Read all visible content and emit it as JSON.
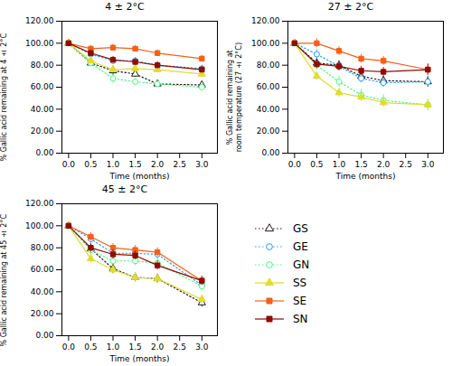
{
  "chart_data": [
    {
      "type": "line",
      "title": "4 ± 2°C",
      "xlabel": "Time (months)",
      "ylabel": "% Gallic acid remaining at 4 ± 2°C",
      "x": [
        0.0,
        0.5,
        1.0,
        1.5,
        2.0,
        3.0
      ],
      "xlim": [
        -0.15,
        3.35
      ],
      "xticks": [
        {
          "value": 0.0,
          "label": "0.0"
        },
        0.5,
        {
          "value": 1.0,
          "label": "1.0"
        },
        1.5,
        {
          "value": 2.0,
          "label": "2.0"
        },
        2.5,
        {
          "value": 3.0,
          "label": "3.0"
        }
      ],
      "ylim": [
        0,
        120
      ],
      "yticks": [
        {
          "value": 0,
          "label": "0.00"
        },
        {
          "value": 20,
          "label": "20.00"
        },
        {
          "value": 40,
          "label": "40.00"
        },
        {
          "value": 60,
          "label": "60.00"
        },
        {
          "value": 80,
          "label": "80.00"
        },
        {
          "value": 100,
          "label": "100.00"
        },
        {
          "value": 120,
          "label": "120.00"
        }
      ],
      "grid": false,
      "series": [
        {
          "name": "GS",
          "marker": "triangle-open",
          "line_style": "dotted",
          "values": [
            100,
            82,
            75,
            72,
            63,
            62
          ],
          "err": [
            0,
            3,
            4,
            3,
            3,
            3
          ]
        },
        {
          "name": "GE",
          "marker": "circle-open",
          "line_style": "dotted",
          "values": [
            100,
            90,
            84,
            84,
            80,
            77
          ],
          "err": [
            0,
            3,
            3,
            3,
            3,
            3
          ]
        },
        {
          "name": "GN",
          "marker": "circle-open",
          "line_style": "dotted",
          "values": [
            100,
            82,
            68,
            65,
            63,
            60
          ],
          "err": [
            0,
            3,
            4,
            3,
            3,
            3
          ]
        },
        {
          "name": "SS",
          "marker": "triangle",
          "line_style": "solid",
          "values": [
            100,
            84,
            76,
            77,
            76,
            72
          ],
          "err": [
            0,
            3,
            3,
            3,
            3,
            3
          ]
        },
        {
          "name": "SE",
          "marker": "square",
          "line_style": "solid",
          "values": [
            100,
            95,
            96,
            95,
            91,
            86
          ],
          "err": [
            0,
            3,
            3,
            3,
            3,
            3
          ]
        },
        {
          "name": "SN",
          "marker": "square",
          "line_style": "solid",
          "values": [
            100,
            91,
            85,
            83,
            80,
            76
          ],
          "err": [
            0,
            3,
            3,
            3,
            3,
            3
          ]
        }
      ]
    },
    {
      "type": "line",
      "title": "27 ± 2°C",
      "xlabel": "Time (months)",
      "ylabel": "% Gallic acid remaining at\nroom temperature (27 ± 2°C)",
      "x": [
        0.0,
        0.5,
        1.0,
        1.5,
        2.0,
        3.0
      ],
      "xlim": [
        -0.15,
        3.35
      ],
      "xticks": [
        {
          "value": 0.0,
          "label": "0.0"
        },
        0.5,
        {
          "value": 1.0,
          "label": "1.0"
        },
        1.5,
        {
          "value": 2.0,
          "label": "2.0"
        },
        2.5,
        {
          "value": 3.0,
          "label": "3.0"
        }
      ],
      "ylim": [
        0,
        120
      ],
      "yticks": [
        {
          "value": 0,
          "label": "0.00"
        },
        {
          "value": 20,
          "label": "20.00"
        },
        {
          "value": 40,
          "label": "40.00"
        },
        {
          "value": 60,
          "label": "60.00"
        },
        {
          "value": 80,
          "label": "80.00"
        },
        {
          "value": 100,
          "label": "100.00"
        },
        {
          "value": 120,
          "label": "120.00"
        }
      ],
      "grid": false,
      "series": [
        {
          "name": "GS",
          "marker": "triangle-open",
          "line_style": "dotted",
          "values": [
            100,
            82,
            80,
            70,
            66,
            65
          ],
          "err": [
            0,
            4,
            4,
            4,
            4,
            5
          ]
        },
        {
          "name": "GE",
          "marker": "circle-open",
          "line_style": "dotted",
          "values": [
            100,
            90,
            79,
            68,
            64,
            65
          ],
          "err": [
            0,
            4,
            4,
            4,
            4,
            5
          ]
        },
        {
          "name": "GN",
          "marker": "circle-open",
          "line_style": "dotted",
          "values": [
            100,
            80,
            65,
            53,
            48,
            44
          ],
          "err": [
            0,
            4,
            5,
            5,
            5,
            5
          ]
        },
        {
          "name": "SS",
          "marker": "triangle",
          "line_style": "solid",
          "values": [
            100,
            70,
            55,
            51,
            46,
            44
          ],
          "err": [
            0,
            4,
            4,
            4,
            4,
            5
          ]
        },
        {
          "name": "SE",
          "marker": "square",
          "line_style": "solid",
          "values": [
            100,
            100,
            93,
            86,
            84,
            76
          ],
          "err": [
            0,
            4,
            4,
            4,
            4,
            5
          ]
        },
        {
          "name": "SN",
          "marker": "square",
          "line_style": "solid",
          "values": [
            100,
            81,
            79,
            75,
            74,
            76
          ],
          "err": [
            0,
            4,
            4,
            4,
            4,
            5
          ]
        }
      ]
    },
    {
      "type": "line",
      "title": "45 ± 2°C",
      "xlabel": "Time (months)",
      "ylabel": "% Gallic acid remaining at 45 ± 2°C",
      "x": [
        0.0,
        0.5,
        1.0,
        1.5,
        2.0,
        3.0
      ],
      "xlim": [
        -0.15,
        3.35
      ],
      "xticks": [
        {
          "value": 0.0,
          "label": "0.0"
        },
        0.5,
        {
          "value": 1.0,
          "label": "1.0"
        },
        1.5,
        {
          "value": 2.0,
          "label": "2.0"
        },
        2.5,
        {
          "value": 3.0,
          "label": "3.0"
        }
      ],
      "ylim": [
        0,
        120
      ],
      "yticks": [
        {
          "value": 0,
          "label": "0.00"
        },
        {
          "value": 20,
          "label": "20.00"
        },
        {
          "value": 40,
          "label": "40.00"
        },
        {
          "value": 60,
          "label": "60.00"
        },
        {
          "value": 80,
          "label": "80.00"
        },
        {
          "value": 100,
          "label": "100.00"
        },
        {
          "value": 120,
          "label": "120.00"
        }
      ],
      "grid": false,
      "series": [
        {
          "name": "GS",
          "marker": "triangle-open",
          "line_style": "dotted",
          "values": [
            100,
            79,
            61,
            53,
            52,
            30
          ],
          "err": [
            0,
            4,
            4,
            4,
            4,
            4
          ]
        },
        {
          "name": "GE",
          "marker": "circle-open",
          "line_style": "dotted",
          "values": [
            100,
            88,
            75,
            75,
            74,
            46
          ],
          "err": [
            0,
            4,
            5,
            4,
            4,
            4
          ]
        },
        {
          "name": "GN",
          "marker": "circle-open",
          "line_style": "dotted",
          "values": [
            100,
            78,
            68,
            68,
            66,
            45
          ],
          "err": [
            0,
            4,
            4,
            4,
            4,
            4
          ]
        },
        {
          "name": "SS",
          "marker": "triangle",
          "line_style": "solid",
          "values": [
            100,
            70,
            60,
            53,
            52,
            33
          ],
          "err": [
            0,
            4,
            4,
            4,
            4,
            4
          ]
        },
        {
          "name": "SE",
          "marker": "square",
          "line_style": "solid",
          "values": [
            100,
            90,
            80,
            78,
            76,
            50
          ],
          "err": [
            0,
            4,
            4,
            4,
            4,
            4
          ]
        },
        {
          "name": "SN",
          "marker": "square",
          "line_style": "solid",
          "values": [
            100,
            80,
            74,
            73,
            64,
            50
          ],
          "err": [
            0,
            4,
            4,
            4,
            4,
            4
          ]
        }
      ]
    }
  ]
}
